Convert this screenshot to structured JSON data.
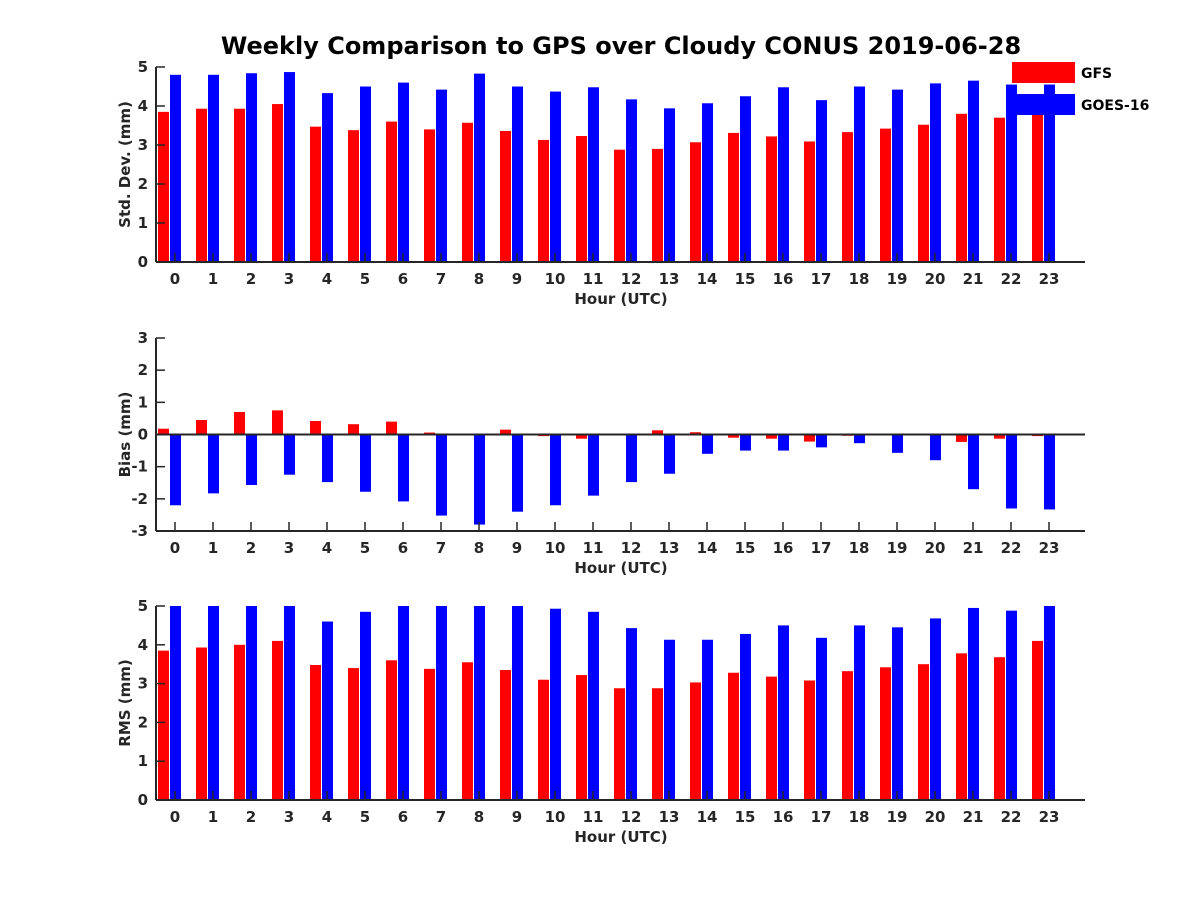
{
  "title": "Weekly Comparison to GPS over Cloudy CONUS 2019-06-28",
  "legend": [
    {
      "name": "GFS",
      "color": "#ff0000"
    },
    {
      "name": "GOES-16",
      "color": "#0000ff"
    }
  ],
  "chart_data": [
    {
      "type": "bar",
      "xlabel": "Hour (UTC)",
      "ylabel": "Std. Dev. (mm)",
      "ylim": [
        0,
        5
      ],
      "yticks": [
        0,
        1,
        2,
        3,
        4,
        5
      ],
      "categories": [
        0,
        1,
        2,
        3,
        4,
        5,
        6,
        7,
        8,
        9,
        10,
        11,
        12,
        13,
        14,
        15,
        16,
        17,
        18,
        19,
        20,
        21,
        22,
        23
      ],
      "series": [
        {
          "name": "GFS",
          "values": [
            3.85,
            3.93,
            3.93,
            4.05,
            3.47,
            3.38,
            3.6,
            3.4,
            3.57,
            3.36,
            3.13,
            3.23,
            2.88,
            2.9,
            3.07,
            3.31,
            3.22,
            3.09,
            3.33,
            3.42,
            3.52,
            3.8,
            3.7,
            3.8
          ]
        },
        {
          "name": "GOES-16",
          "values": [
            4.8,
            4.8,
            4.84,
            4.87,
            4.33,
            4.5,
            4.6,
            4.42,
            4.83,
            4.5,
            4.37,
            4.48,
            4.17,
            3.94,
            4.07,
            4.25,
            4.48,
            4.15,
            4.5,
            4.42,
            4.58,
            4.65,
            4.55,
            4.55
          ]
        }
      ]
    },
    {
      "type": "bar",
      "xlabel": "Hour (UTC)",
      "ylabel": "Bias (mm)",
      "ylim": [
        -3,
        3
      ],
      "yticks": [
        -3,
        -2,
        -1,
        0,
        1,
        2,
        3
      ],
      "categories": [
        0,
        1,
        2,
        3,
        4,
        5,
        6,
        7,
        8,
        9,
        10,
        11,
        12,
        13,
        14,
        15,
        16,
        17,
        18,
        19,
        20,
        21,
        22,
        23
      ],
      "series": [
        {
          "name": "GFS",
          "values": [
            0.18,
            0.45,
            0.7,
            0.75,
            0.42,
            0.32,
            0.4,
            0.06,
            -0.03,
            0.15,
            -0.05,
            -0.13,
            0.0,
            0.13,
            0.07,
            -0.1,
            -0.13,
            -0.22,
            -0.04,
            -0.02,
            -0.02,
            -0.23,
            -0.13,
            -0.05
          ]
        },
        {
          "name": "GOES-16",
          "values": [
            -2.2,
            -1.83,
            -1.57,
            -1.25,
            -1.48,
            -1.78,
            -2.08,
            -2.52,
            -2.8,
            -2.4,
            -2.2,
            -1.9,
            -1.48,
            -1.22,
            -0.6,
            -0.5,
            -0.5,
            -0.4,
            -0.27,
            -0.57,
            -0.8,
            -1.7,
            -2.3,
            -2.33
          ]
        }
      ]
    },
    {
      "type": "bar",
      "xlabel": "Hour (UTC)",
      "ylabel": "RMS (mm)",
      "ylim": [
        0,
        5
      ],
      "yticks": [
        0,
        1,
        2,
        3,
        4,
        5
      ],
      "categories": [
        0,
        1,
        2,
        3,
        4,
        5,
        6,
        7,
        8,
        9,
        10,
        11,
        12,
        13,
        14,
        15,
        16,
        17,
        18,
        19,
        20,
        21,
        22,
        23
      ],
      "series": [
        {
          "name": "GFS",
          "values": [
            3.85,
            3.93,
            4.0,
            4.1,
            3.48,
            3.4,
            3.6,
            3.38,
            3.55,
            3.35,
            3.1,
            3.22,
            2.88,
            2.88,
            3.03,
            3.28,
            3.18,
            3.08,
            3.32,
            3.42,
            3.5,
            3.78,
            3.68,
            4.1
          ]
        },
        {
          "name": "GOES-16",
          "values": [
            5.0,
            5.0,
            5.0,
            5.0,
            4.6,
            4.85,
            5.0,
            5.0,
            5.0,
            5.0,
            4.93,
            4.85,
            4.43,
            4.13,
            4.13,
            4.28,
            4.5,
            4.18,
            4.5,
            4.45,
            4.68,
            4.95,
            4.88,
            5.0
          ]
        }
      ]
    }
  ]
}
